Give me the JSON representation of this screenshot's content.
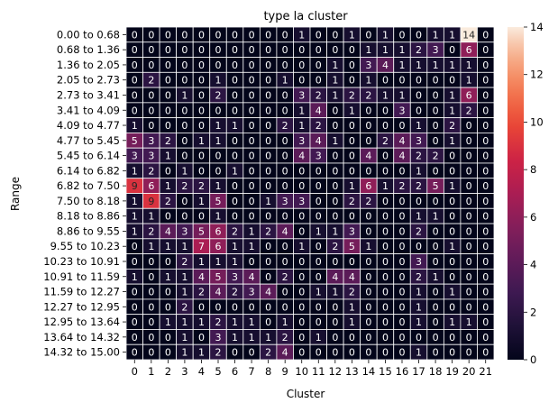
{
  "chart_data": {
    "type": "heatmap",
    "title": "type la cluster",
    "xlabel": "Cluster",
    "ylabel": "Range",
    "x_categories": [
      "0",
      "1",
      "2",
      "3",
      "4",
      "5",
      "6",
      "7",
      "8",
      "9",
      "10",
      "11",
      "12",
      "13",
      "14",
      "15",
      "16",
      "17",
      "18",
      "19",
      "20",
      "21"
    ],
    "y_categories": [
      "0.00 to 0.68",
      "0.68 to 1.36",
      "1.36 to 2.05",
      "2.05 to 2.73",
      "2.73 to 3.41",
      "3.41 to 4.09",
      "4.09 to 4.77",
      "4.77 to 5.45",
      "5.45 to 6.14",
      "6.14 to 6.82",
      "6.82 to 7.50",
      "7.50 to 8.18",
      "8.18 to 8.86",
      "8.86 to 9.55",
      "9.55 to 10.23",
      "10.23 to 10.91",
      "10.91 to 11.59",
      "11.59 to 12.27",
      "12.27 to 12.95",
      "12.95 to 13.64",
      "13.64 to 14.32",
      "14.32 to 15.00"
    ],
    "values": [
      [
        0,
        0,
        0,
        0,
        0,
        0,
        0,
        0,
        0,
        0,
        1,
        0,
        0,
        1,
        0,
        1,
        0,
        0,
        1,
        1,
        14,
        0
      ],
      [
        0,
        0,
        0,
        0,
        0,
        0,
        0,
        0,
        0,
        0,
        0,
        0,
        0,
        0,
        1,
        1,
        1,
        2,
        3,
        0,
        6,
        0
      ],
      [
        0,
        0,
        0,
        0,
        0,
        0,
        0,
        0,
        0,
        0,
        0,
        0,
        1,
        0,
        3,
        4,
        1,
        1,
        1,
        1,
        1,
        0
      ],
      [
        0,
        2,
        0,
        0,
        0,
        1,
        0,
        0,
        0,
        1,
        0,
        0,
        1,
        0,
        1,
        0,
        0,
        0,
        0,
        0,
        1,
        0
      ],
      [
        0,
        0,
        0,
        1,
        0,
        2,
        0,
        0,
        0,
        0,
        3,
        2,
        1,
        2,
        2,
        1,
        1,
        0,
        0,
        1,
        6,
        0
      ],
      [
        0,
        0,
        0,
        0,
        0,
        0,
        0,
        0,
        0,
        0,
        1,
        4,
        0,
        1,
        0,
        0,
        3,
        0,
        0,
        1,
        2,
        0
      ],
      [
        1,
        0,
        0,
        0,
        0,
        1,
        1,
        0,
        0,
        2,
        1,
        2,
        0,
        0,
        0,
        0,
        0,
        1,
        0,
        2,
        0,
        0
      ],
      [
        5,
        3,
        2,
        0,
        1,
        1,
        0,
        0,
        0,
        0,
        3,
        4,
        1,
        0,
        0,
        2,
        4,
        3,
        0,
        1,
        0,
        0
      ],
      [
        3,
        3,
        1,
        0,
        0,
        0,
        0,
        0,
        0,
        0,
        4,
        3,
        0,
        0,
        4,
        0,
        4,
        2,
        2,
        0,
        0,
        0
      ],
      [
        1,
        2,
        0,
        1,
        0,
        0,
        1,
        0,
        0,
        0,
        0,
        0,
        0,
        0,
        0,
        0,
        0,
        1,
        0,
        0,
        0,
        0
      ],
      [
        9,
        6,
        1,
        2,
        2,
        1,
        0,
        0,
        0,
        0,
        0,
        0,
        0,
        1,
        6,
        1,
        2,
        2,
        5,
        1,
        0,
        0
      ],
      [
        1,
        9,
        2,
        0,
        1,
        5,
        0,
        0,
        1,
        3,
        3,
        0,
        0,
        2,
        2,
        0,
        0,
        0,
        0,
        0,
        0,
        0
      ],
      [
        1,
        1,
        0,
        0,
        0,
        1,
        0,
        0,
        0,
        0,
        0,
        0,
        0,
        0,
        0,
        0,
        0,
        1,
        1,
        0,
        0,
        0
      ],
      [
        1,
        2,
        4,
        3,
        5,
        6,
        2,
        1,
        2,
        4,
        0,
        1,
        1,
        3,
        0,
        0,
        0,
        2,
        0,
        0,
        0,
        0
      ],
      [
        0,
        1,
        1,
        1,
        7,
        6,
        1,
        1,
        0,
        0,
        1,
        0,
        2,
        5,
        1,
        0,
        0,
        0,
        0,
        1,
        0,
        0
      ],
      [
        0,
        0,
        0,
        2,
        1,
        1,
        1,
        0,
        0,
        0,
        0,
        0,
        0,
        0,
        0,
        0,
        0,
        3,
        0,
        0,
        0,
        0
      ],
      [
        1,
        0,
        1,
        1,
        4,
        5,
        3,
        4,
        0,
        2,
        0,
        0,
        4,
        4,
        0,
        0,
        0,
        2,
        1,
        0,
        0,
        0
      ],
      [
        0,
        0,
        0,
        1,
        2,
        4,
        2,
        3,
        4,
        0,
        0,
        1,
        1,
        2,
        0,
        0,
        0,
        1,
        0,
        1,
        0,
        0
      ],
      [
        0,
        0,
        0,
        2,
        0,
        0,
        0,
        0,
        0,
        0,
        0,
        0,
        0,
        1,
        0,
        0,
        0,
        1,
        0,
        0,
        0,
        0
      ],
      [
        0,
        0,
        1,
        1,
        1,
        2,
        1,
        1,
        0,
        1,
        0,
        0,
        0,
        1,
        0,
        0,
        0,
        1,
        0,
        1,
        1,
        0
      ],
      [
        0,
        0,
        0,
        1,
        0,
        3,
        1,
        1,
        1,
        2,
        0,
        1,
        0,
        0,
        0,
        0,
        0,
        0,
        0,
        0,
        0,
        0
      ],
      [
        0,
        0,
        0,
        1,
        1,
        2,
        0,
        0,
        2,
        4,
        0,
        0,
        0,
        0,
        0,
        0,
        0,
        1,
        0,
        0,
        0,
        0
      ]
    ],
    "vmin": 0,
    "vmax": 14,
    "colormap": "rocket",
    "colorbar_ticks": [
      "0",
      "2",
      "4",
      "6",
      "8",
      "10",
      "12",
      "14"
    ],
    "cell_line_color": "#ffffff",
    "annotation_colors": {
      "on_dark": "#ffffff",
      "on_light": "#262626"
    }
  }
}
